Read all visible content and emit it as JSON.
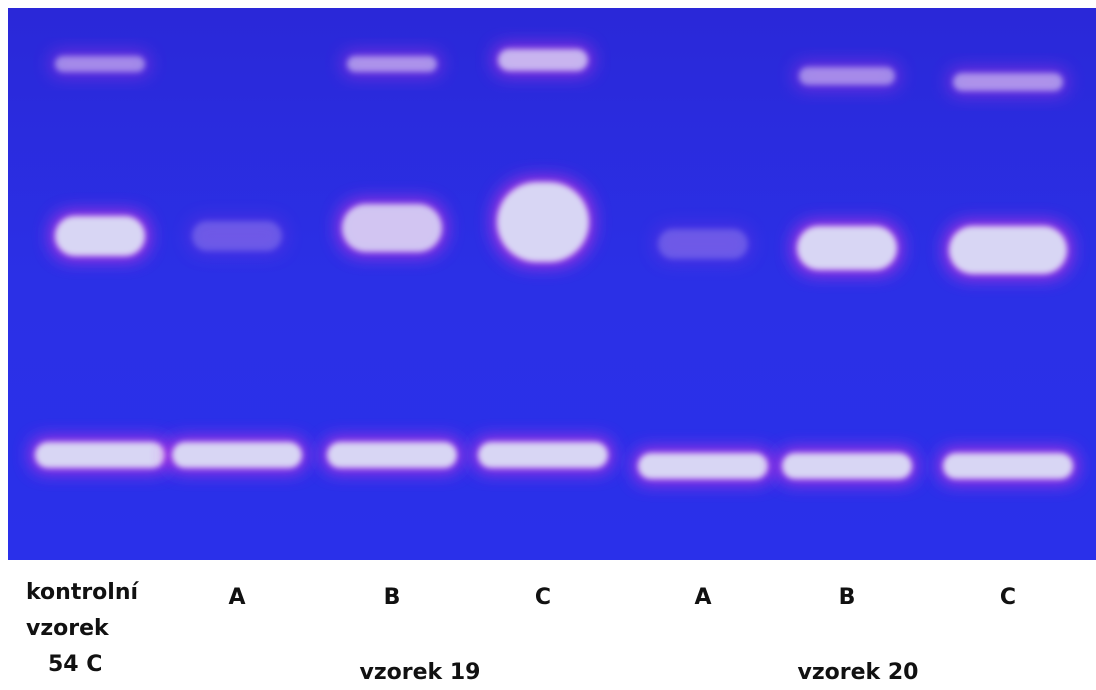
{
  "lanes": [
    {
      "label_lines": [
        "kontrolní",
        "vzorek",
        "54 C"
      ]
    },
    {
      "label_lines": [
        "A"
      ]
    },
    {
      "label_lines": [
        "B"
      ]
    },
    {
      "label_lines": [
        "C"
      ]
    },
    {
      "label_lines": [
        "A"
      ]
    },
    {
      "label_lines": [
        "B"
      ]
    },
    {
      "label_lines": [
        "C"
      ]
    }
  ],
  "groups": [
    {
      "label": "vzorek 19"
    },
    {
      "label": "vzorek 20"
    }
  ]
}
